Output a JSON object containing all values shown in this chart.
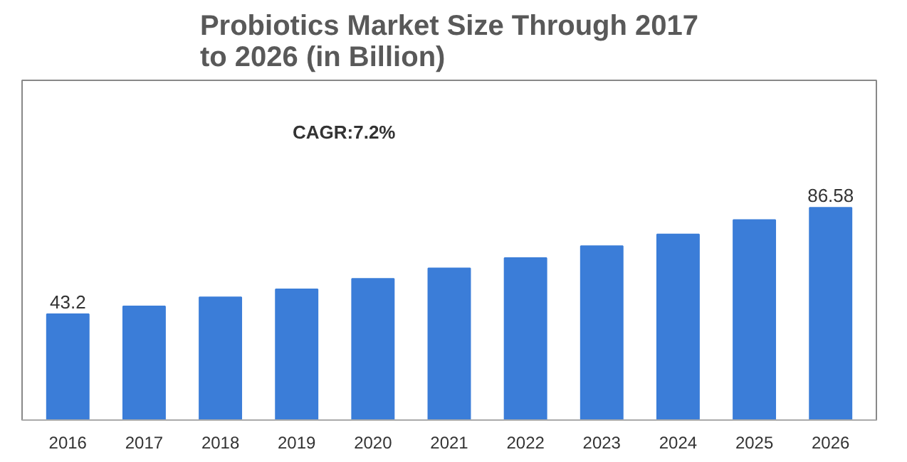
{
  "chart_data": {
    "type": "bar",
    "title": "Probiotics Market Size Through 2017 to 2026 (in Billion)",
    "categories": [
      "2016",
      "2017",
      "2018",
      "2019",
      "2020",
      "2021",
      "2022",
      "2023",
      "2024",
      "2025",
      "2026"
    ],
    "values": [
      43.2,
      46.4,
      50.1,
      53.3,
      57.6,
      61.9,
      66.1,
      70.9,
      75.7,
      81.6,
      86.58
    ],
    "value_labels": [
      "43.2",
      null,
      null,
      null,
      null,
      null,
      null,
      null,
      null,
      null,
      "86.58"
    ],
    "color": "#3b7dd8",
    "annotations": [
      "CAGR:7.2%"
    ],
    "grid": false
  }
}
